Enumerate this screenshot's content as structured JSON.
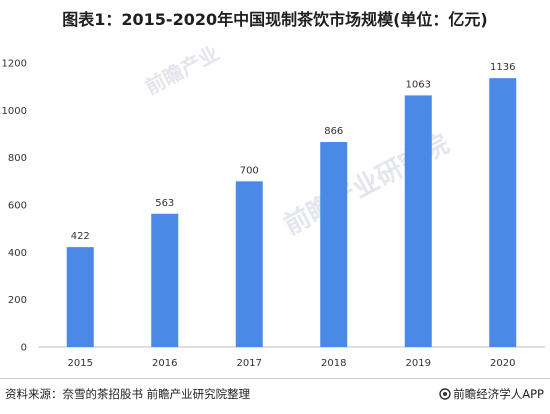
{
  "title": "图表1：2015-2020年中国现制茶饮市场规模(单位：亿元)",
  "watermark": {
    "brand": "前瞻产业",
    "brand_full": "前瞻产业研究院"
  },
  "chart_data": {
    "type": "bar",
    "categories": [
      "2015",
      "2016",
      "2017",
      "2018",
      "2019",
      "2020"
    ],
    "values": [
      422,
      563,
      700,
      866,
      1063,
      1136
    ],
    "ylim": [
      0,
      1200
    ],
    "yticks": [
      0,
      200,
      400,
      600,
      800,
      1000,
      1200
    ],
    "bar_color": "#4a89e5",
    "grid": false,
    "xlabel": "",
    "ylabel": ""
  },
  "footer": {
    "source": "资料来源：奈雪的茶招股书 前瞻产业研究院整理",
    "brand": "前瞻经济学人APP"
  }
}
